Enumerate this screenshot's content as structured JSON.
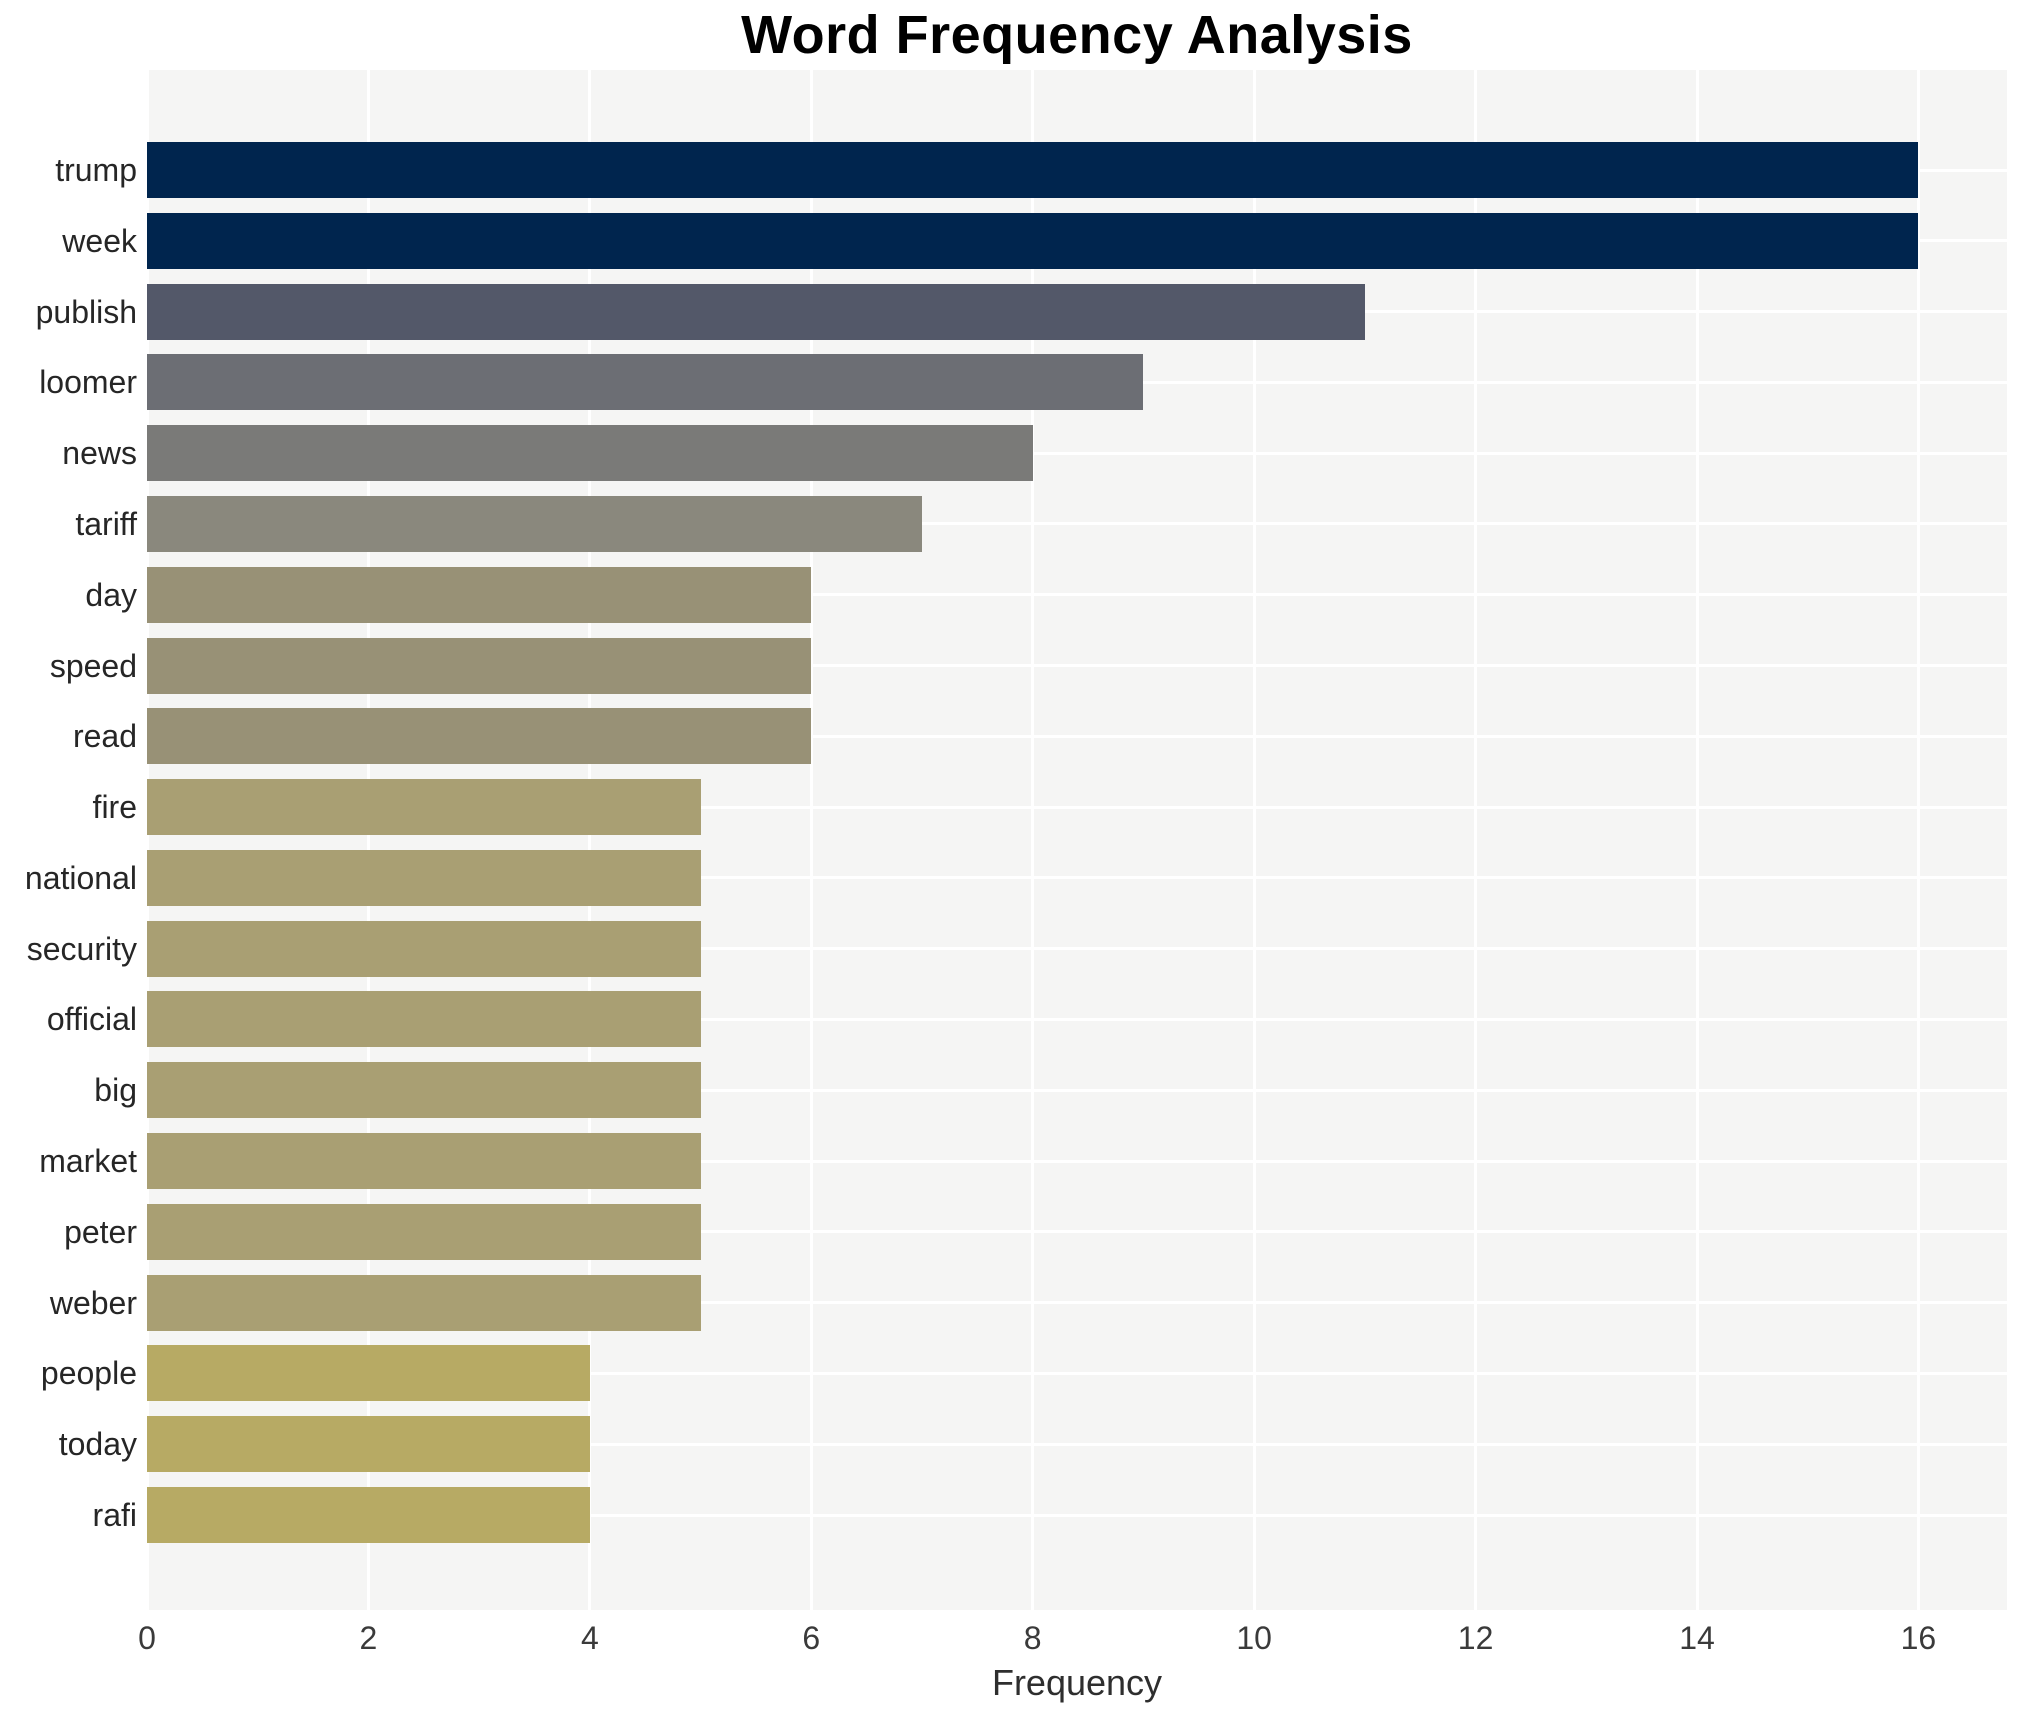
{
  "title": "Word Frequency Analysis",
  "chart_data": {
    "type": "bar",
    "orientation": "horizontal",
    "title": "Word Frequency Analysis",
    "xlabel": "Frequency",
    "ylabel": "",
    "categories": [
      "trump",
      "week",
      "publish",
      "loomer",
      "news",
      "tariff",
      "day",
      "speed",
      "read",
      "fire",
      "national",
      "security",
      "official",
      "big",
      "market",
      "peter",
      "weber",
      "people",
      "today",
      "rafi"
    ],
    "values": [
      16,
      16,
      11,
      9,
      8,
      7,
      6,
      6,
      6,
      5,
      5,
      5,
      5,
      5,
      5,
      5,
      5,
      4,
      4,
      4
    ],
    "bar_colors": [
      "#00254e",
      "#00254e",
      "#535869",
      "#6c6e74",
      "#7a7a78",
      "#8a887d",
      "#989176",
      "#989176",
      "#989176",
      "#a99f73",
      "#a99f73",
      "#a99f73",
      "#a99f73",
      "#a99f73",
      "#a99f73",
      "#a99f73",
      "#a99f73",
      "#b7aa64",
      "#b7aa64",
      "#b7aa64"
    ],
    "xticks": [
      0,
      2,
      4,
      6,
      8,
      10,
      12,
      14,
      16
    ],
    "xlim": [
      0,
      16.8
    ],
    "grid": true,
    "legend": false,
    "plot_background": "#f5f5f4",
    "gridline_color": "#ffffff",
    "colormap": "cividis"
  }
}
